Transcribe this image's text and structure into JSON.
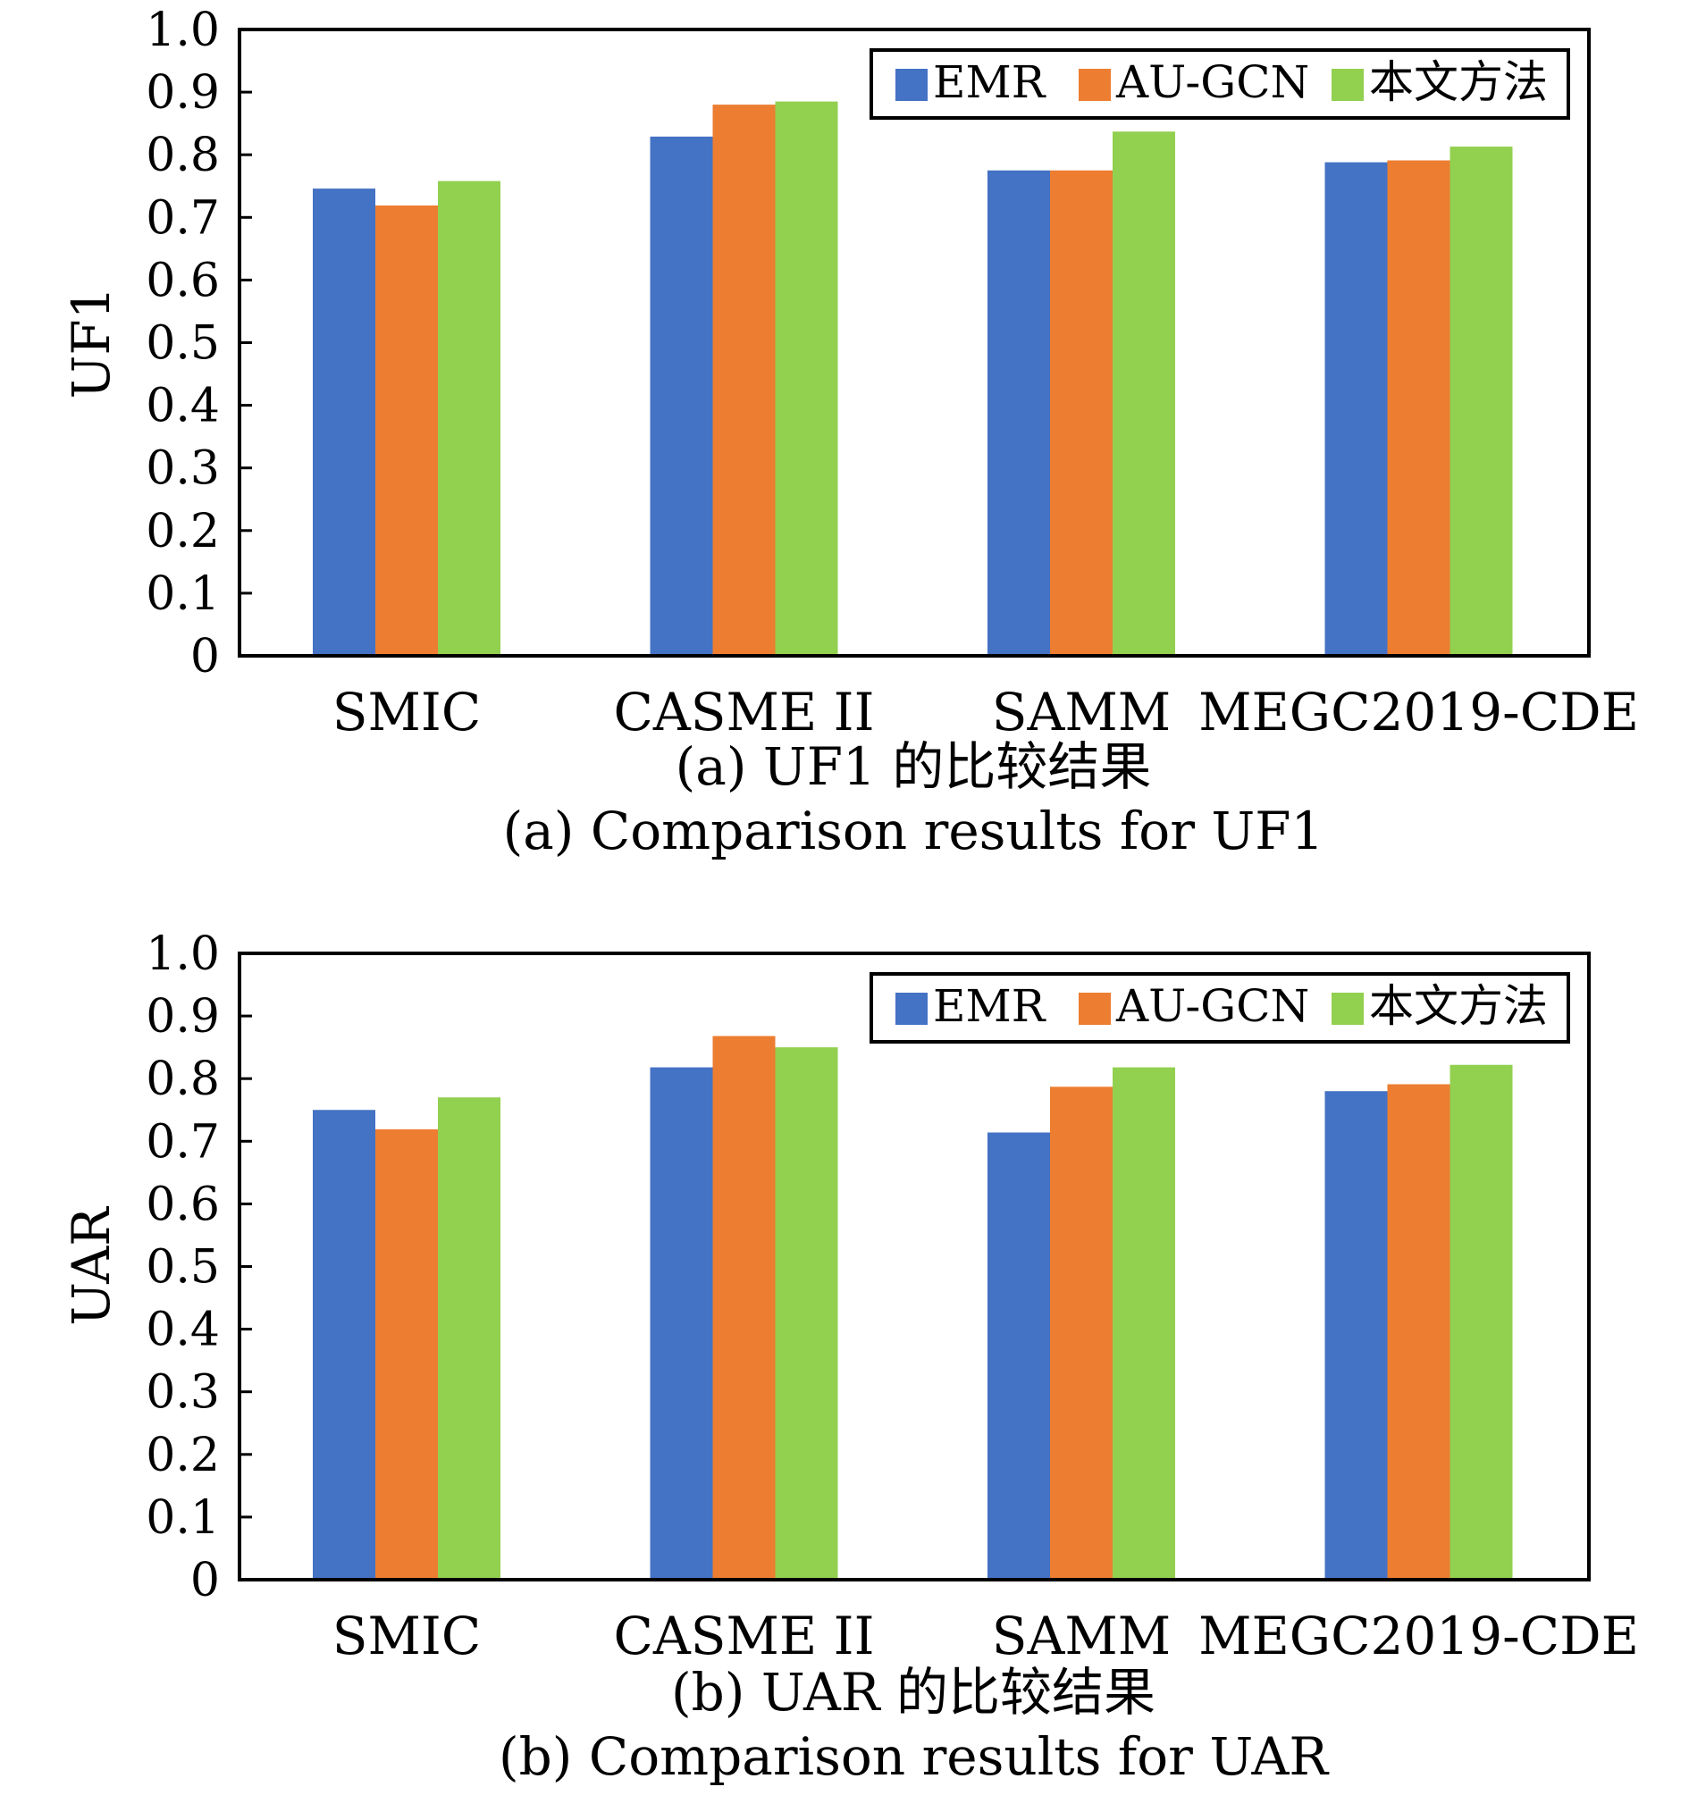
{
  "colors": {
    "EMR": "#4472C4",
    "AU-GCN": "#ED7D31",
    "本文方法": "#92D050"
  },
  "chart_data": [
    {
      "type": "bar",
      "ylabel": "UF1",
      "ylim": [
        0,
        1.0
      ],
      "yticks": [
        "0",
        "0.1",
        "0.2",
        "0.3",
        "0.4",
        "0.5",
        "0.6",
        "0.7",
        "0.8",
        "0.9",
        "1.0"
      ],
      "categories": [
        "SMIC",
        "CASME II",
        "SAMM",
        "MEGC2019-CDE"
      ],
      "legend": {
        "position": "top-right",
        "entries": [
          "EMR",
          "AU-GCN",
          "本文方法"
        ]
      },
      "series": [
        {
          "name": "EMR",
          "values": [
            0.746,
            0.829,
            0.775,
            0.788
          ]
        },
        {
          "name": "AU-GCN",
          "values": [
            0.719,
            0.88,
            0.775,
            0.791
          ]
        },
        {
          "name": "本文方法",
          "values": [
            0.758,
            0.885,
            0.837,
            0.813
          ]
        }
      ],
      "caption_cn": "(a) UF1 的比较结果",
      "caption_en": "(a) Comparison results for UF1"
    },
    {
      "type": "bar",
      "ylabel": "UAR",
      "ylim": [
        0,
        1.0
      ],
      "yticks": [
        "0",
        "0.1",
        "0.2",
        "0.3",
        "0.4",
        "0.5",
        "0.6",
        "0.7",
        "0.8",
        "0.9",
        "1.0"
      ],
      "categories": [
        "SMIC",
        "CASME II",
        "SAMM",
        "MEGC2019-CDE"
      ],
      "legend": {
        "position": "top-right",
        "entries": [
          "EMR",
          "AU-GCN",
          "本文方法"
        ]
      },
      "series": [
        {
          "name": "EMR",
          "values": [
            0.75,
            0.818,
            0.714,
            0.78
          ]
        },
        {
          "name": "AU-GCN",
          "values": [
            0.719,
            0.868,
            0.787,
            0.791
          ]
        },
        {
          "name": "本文方法",
          "values": [
            0.77,
            0.85,
            0.818,
            0.822
          ]
        }
      ],
      "caption_cn": "(b) UAR 的比较结果",
      "caption_en": "(b) Comparison results for UAR"
    }
  ]
}
